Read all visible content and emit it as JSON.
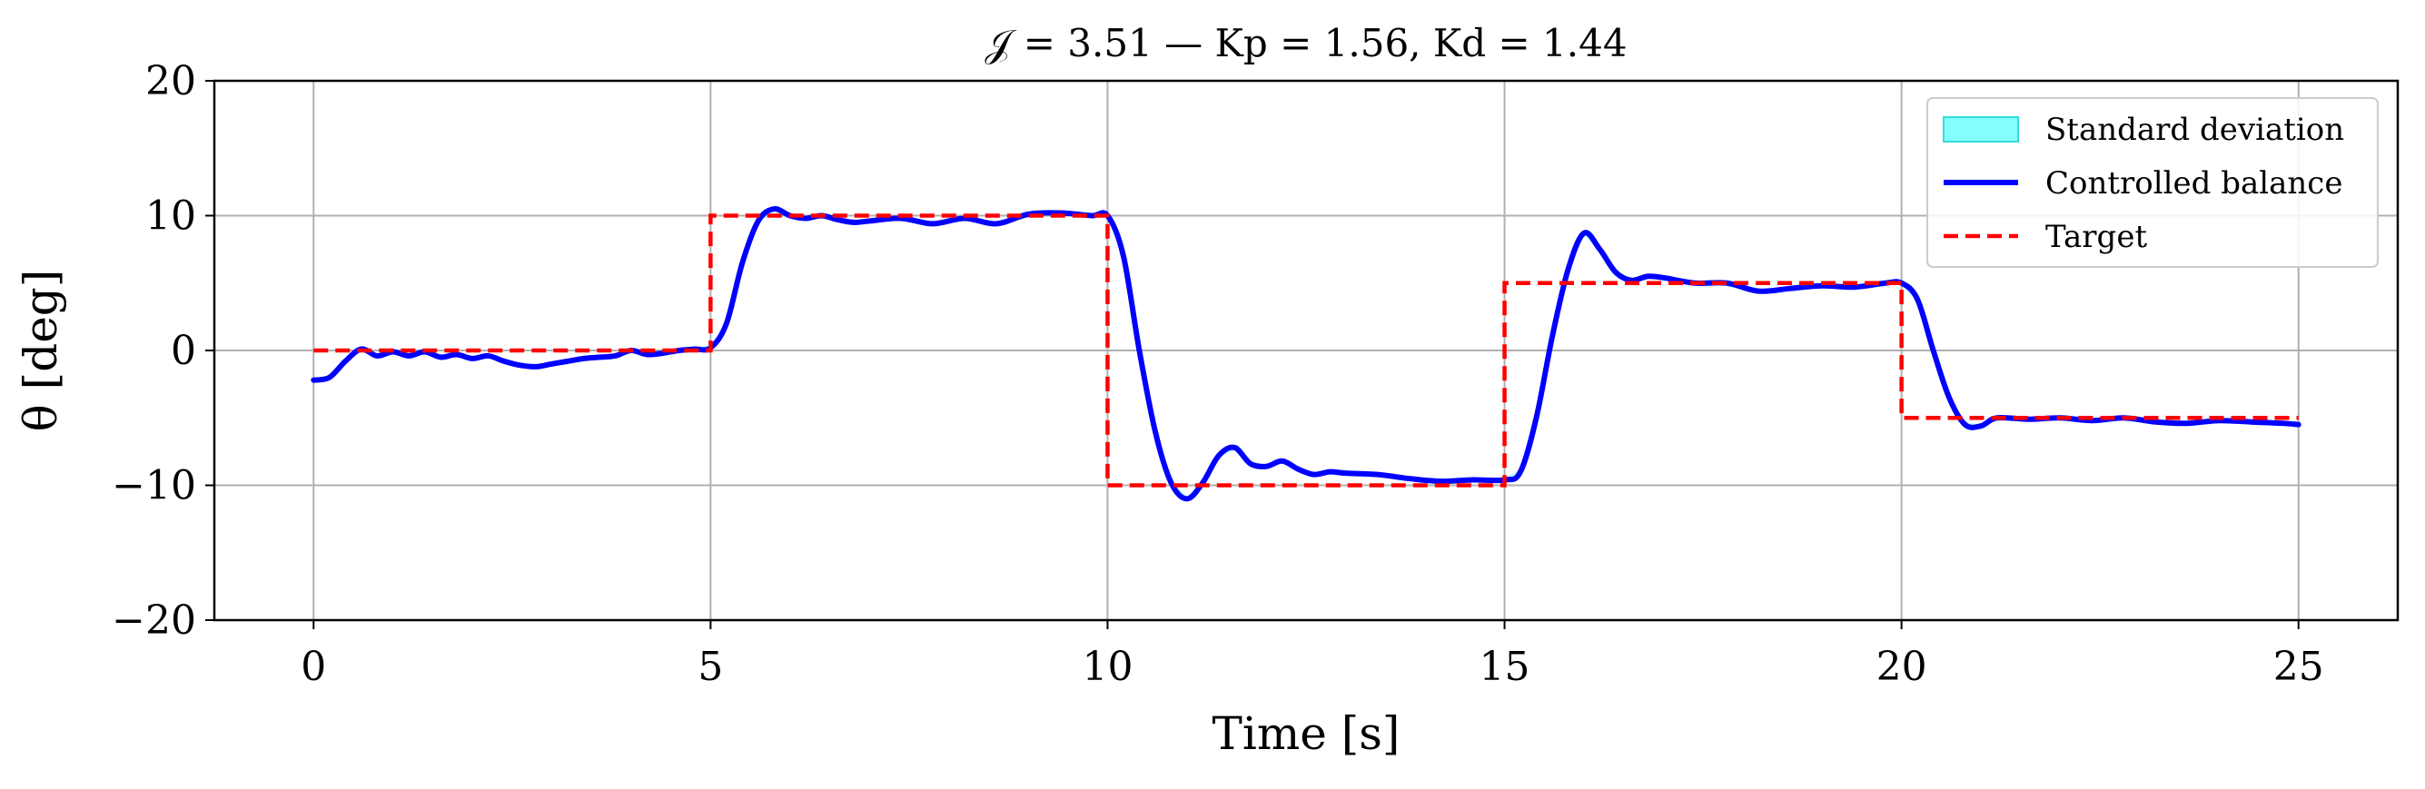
{
  "chart_data": {
    "type": "line",
    "title": "𝒥 = 3.51 — Kp = 1.56, Kd = 1.44",
    "xlabel": "Time [s]",
    "ylabel": "θ [deg]",
    "xlim": [
      -1.25,
      26.25
    ],
    "ylim": [
      -20,
      20
    ],
    "x_ticks": [
      0,
      5,
      10,
      15,
      20,
      25
    ],
    "y_ticks": [
      20,
      10,
      0,
      -10,
      -20
    ],
    "x_tick_labels": [
      "0",
      "5",
      "10",
      "15",
      "20",
      "25"
    ],
    "y_tick_labels": [
      "20",
      "10",
      "0",
      "−10",
      "−20"
    ],
    "grid": true,
    "legend_position": "top-right",
    "legend": [
      "Standard deviation",
      "Controlled balance",
      "Target"
    ],
    "colors": {
      "std_fill": "#66ffff",
      "std_edge": "#33dddd",
      "controlled": "#0000ff",
      "target": "#ff0000",
      "grid": "#b0b0b0"
    },
    "series": [
      {
        "name": "Controlled balance",
        "style": "solid",
        "x": [
          0,
          0.2,
          0.4,
          0.6,
          0.8,
          1.0,
          1.2,
          1.4,
          1.6,
          1.8,
          2.0,
          2.2,
          2.4,
          2.6,
          2.8,
          3.0,
          3.2,
          3.4,
          3.6,
          3.8,
          4.0,
          4.2,
          4.4,
          4.6,
          4.8,
          5.0,
          5.2,
          5.4,
          5.6,
          5.8,
          6.0,
          6.2,
          6.4,
          6.6,
          6.8,
          7.0,
          7.4,
          7.8,
          8.2,
          8.6,
          9.0,
          9.4,
          9.8,
          10.0,
          10.2,
          10.4,
          10.6,
          10.8,
          11.0,
          11.2,
          11.4,
          11.6,
          11.8,
          12.0,
          12.2,
          12.4,
          12.6,
          12.8,
          13.0,
          13.4,
          13.8,
          14.2,
          14.6,
          15.0,
          15.2,
          15.4,
          15.6,
          15.8,
          16.0,
          16.2,
          16.4,
          16.6,
          16.8,
          17.0,
          17.4,
          17.8,
          18.2,
          18.6,
          19.0,
          19.4,
          19.8,
          20.0,
          20.2,
          20.4,
          20.6,
          20.8,
          21.0,
          21.2,
          21.6,
          22.0,
          22.4,
          22.8,
          23.2,
          23.6,
          24.0,
          24.4,
          24.8,
          25.0
        ],
        "y": [
          -2.2,
          -2.0,
          -0.8,
          0.1,
          -0.4,
          -0.1,
          -0.4,
          -0.1,
          -0.5,
          -0.3,
          -0.6,
          -0.4,
          -0.8,
          -1.1,
          -1.2,
          -1.0,
          -0.8,
          -0.6,
          -0.5,
          -0.4,
          0.0,
          -0.3,
          -0.2,
          0.0,
          0.1,
          0.2,
          2.0,
          6.5,
          9.6,
          10.5,
          10.0,
          9.8,
          10.0,
          9.7,
          9.5,
          9.6,
          9.8,
          9.4,
          9.8,
          9.4,
          10.1,
          10.2,
          10.0,
          10.0,
          7.0,
          0.0,
          -6.0,
          -9.8,
          -11.0,
          -9.8,
          -7.8,
          -7.2,
          -8.4,
          -8.6,
          -8.2,
          -8.8,
          -9.2,
          -9.0,
          -9.1,
          -9.2,
          -9.5,
          -9.7,
          -9.6,
          -9.6,
          -9.0,
          -5.0,
          1.0,
          6.0,
          8.7,
          7.5,
          5.8,
          5.2,
          5.5,
          5.4,
          5.0,
          5.0,
          4.4,
          4.6,
          4.8,
          4.7,
          5.0,
          5.0,
          3.8,
          0.0,
          -3.5,
          -5.5,
          -5.6,
          -5.0,
          -5.1,
          -5.0,
          -5.2,
          -5.0,
          -5.3,
          -5.4,
          -5.2,
          -5.3,
          -5.4,
          -5.5
        ]
      },
      {
        "name": "Target",
        "style": "dashed",
        "x": [
          0,
          5,
          5,
          10,
          10,
          15,
          15,
          20,
          20,
          25
        ],
        "y": [
          0,
          0,
          10,
          10,
          -10,
          -10,
          5,
          5,
          -5,
          -5
        ]
      }
    ],
    "std_band_halfwidth": 0.15
  }
}
